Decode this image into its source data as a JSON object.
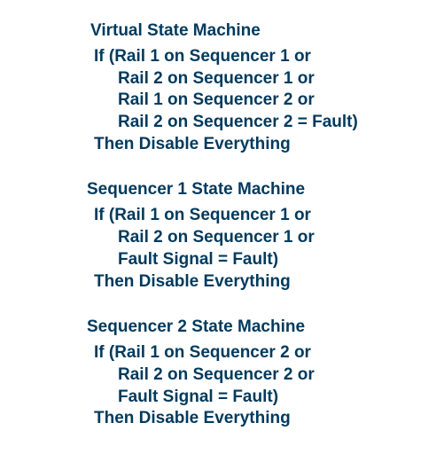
{
  "text_color": "#003a5d",
  "background_color": "#ffffff",
  "font_size": 19,
  "font_weight": "bold",
  "blocks": [
    {
      "title": "Virtual State Machine",
      "if": "If (Rail 1 on Sequencer 1 or",
      "conds": [
        "Rail 2 on Sequencer 1 or",
        "Rail 1 on Sequencer 2 or",
        "Rail 2 on Sequencer 2 = Fault)"
      ],
      "then": "Then Disable Everything"
    },
    {
      "title": "Sequencer 1 State Machine",
      "if": "If (Rail 1 on Sequencer 1 or",
      "conds": [
        "Rail 2 on Sequencer 1 or",
        "Fault Signal = Fault)"
      ],
      "then": "Then Disable Everything"
    },
    {
      "title": "Sequencer 2 State Machine",
      "if": "If (Rail 1 on Sequencer 2 or",
      "conds": [
        "Rail 2 on Sequencer 2 or",
        "Fault Signal = Fault)"
      ],
      "then": "Then Disable Everything"
    }
  ]
}
